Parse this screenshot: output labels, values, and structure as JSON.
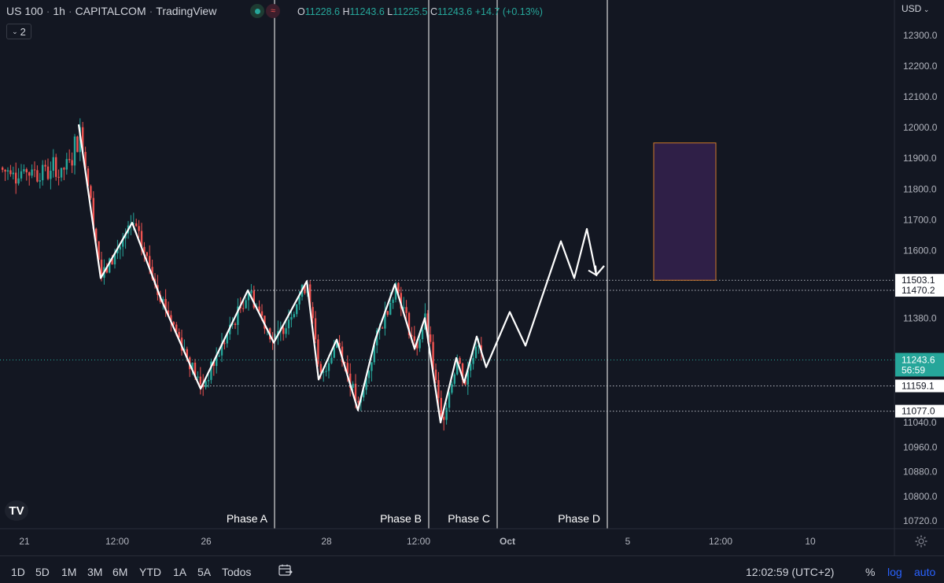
{
  "header": {
    "symbol": "US 100",
    "timeframe": "1h",
    "exchange": "CAPITALCOM",
    "platform": "TradingView",
    "interval_count": "2",
    "ohlc": {
      "o_label": "O",
      "o": "11228.6",
      "h_label": "H",
      "h": "11243.6",
      "l_label": "L",
      "l": "11225.5",
      "c_label": "C",
      "c": "11243.6",
      "change": "+14.7 (+0.13%)"
    }
  },
  "price_axis": {
    "currency": "USD",
    "ticks": [
      "12300.0",
      "12200.0",
      "12100.0",
      "12000.0",
      "11900.0",
      "11800.0",
      "11700.0",
      "11600.0",
      "11380.0",
      "10960.0",
      "10880.0",
      "10800.0",
      "10720.0"
    ],
    "ticks_extra": [
      "11040.0"
    ],
    "level_labels": [
      {
        "price": 11503.1,
        "text": "11503.1"
      },
      {
        "price": 11470.2,
        "text": "11470.2"
      },
      {
        "price": 11159.1,
        "text": "11159.1"
      },
      {
        "price": 11077.0,
        "text": "11077.0"
      }
    ],
    "current_price": "11243.6",
    "countdown": "56:59"
  },
  "time_axis": {
    "labels": [
      "21",
      "12:00",
      "26",
      "28",
      "12:00",
      "Oct",
      "5",
      "12:00",
      "10"
    ]
  },
  "phases": [
    "Phase A",
    "Phase B",
    "Phase C",
    "Phase D"
  ],
  "bottom_bar": {
    "ranges": [
      "1D",
      "5D",
      "1M",
      "3M",
      "6M",
      "YTD",
      "1A",
      "5A",
      "Todos"
    ],
    "clock": "12:02:59 (UTC+2)",
    "percent": "%",
    "log": "log",
    "auto": "auto"
  },
  "logo_text": "TV",
  "colors": {
    "background": "#131722",
    "up": "#26a69a",
    "down": "#ef5350",
    "zigzag": "#ffffff",
    "target_box_fill": "#2f1f47",
    "target_box_border": "#d07a2a",
    "accent": "#2962ff"
  },
  "chart_data": {
    "type": "candlestick",
    "title": "",
    "y_range": [
      10690,
      12340
    ],
    "zigzag_path": [
      [
        100,
        12010
      ],
      [
        128,
        11510
      ],
      [
        168,
        11690
      ],
      [
        205,
        11440
      ],
      [
        255,
        11150
      ],
      [
        315,
        11470
      ],
      [
        348,
        11300
      ],
      [
        390,
        11500
      ],
      [
        405,
        11180
      ],
      [
        428,
        11310
      ],
      [
        455,
        11080
      ],
      [
        477,
        11310
      ],
      [
        502,
        11490
      ],
      [
        527,
        11280
      ],
      [
        540,
        11380
      ],
      [
        560,
        11040
      ],
      [
        580,
        11250
      ],
      [
        590,
        11170
      ],
      [
        606,
        11320
      ],
      [
        618,
        11220
      ],
      [
        648,
        11400
      ],
      [
        668,
        11290
      ],
      [
        713,
        11630
      ],
      [
        730,
        11510
      ],
      [
        746,
        11670
      ],
      [
        758,
        11520
      ],
      [
        768,
        11550
      ]
    ],
    "target_zone": {
      "price_low": 11503.1,
      "price_high": 11950
    },
    "dotted_levels": [
      11503.1,
      11470.2,
      11159.1,
      11077.0
    ],
    "current_level": 11243.6
  }
}
